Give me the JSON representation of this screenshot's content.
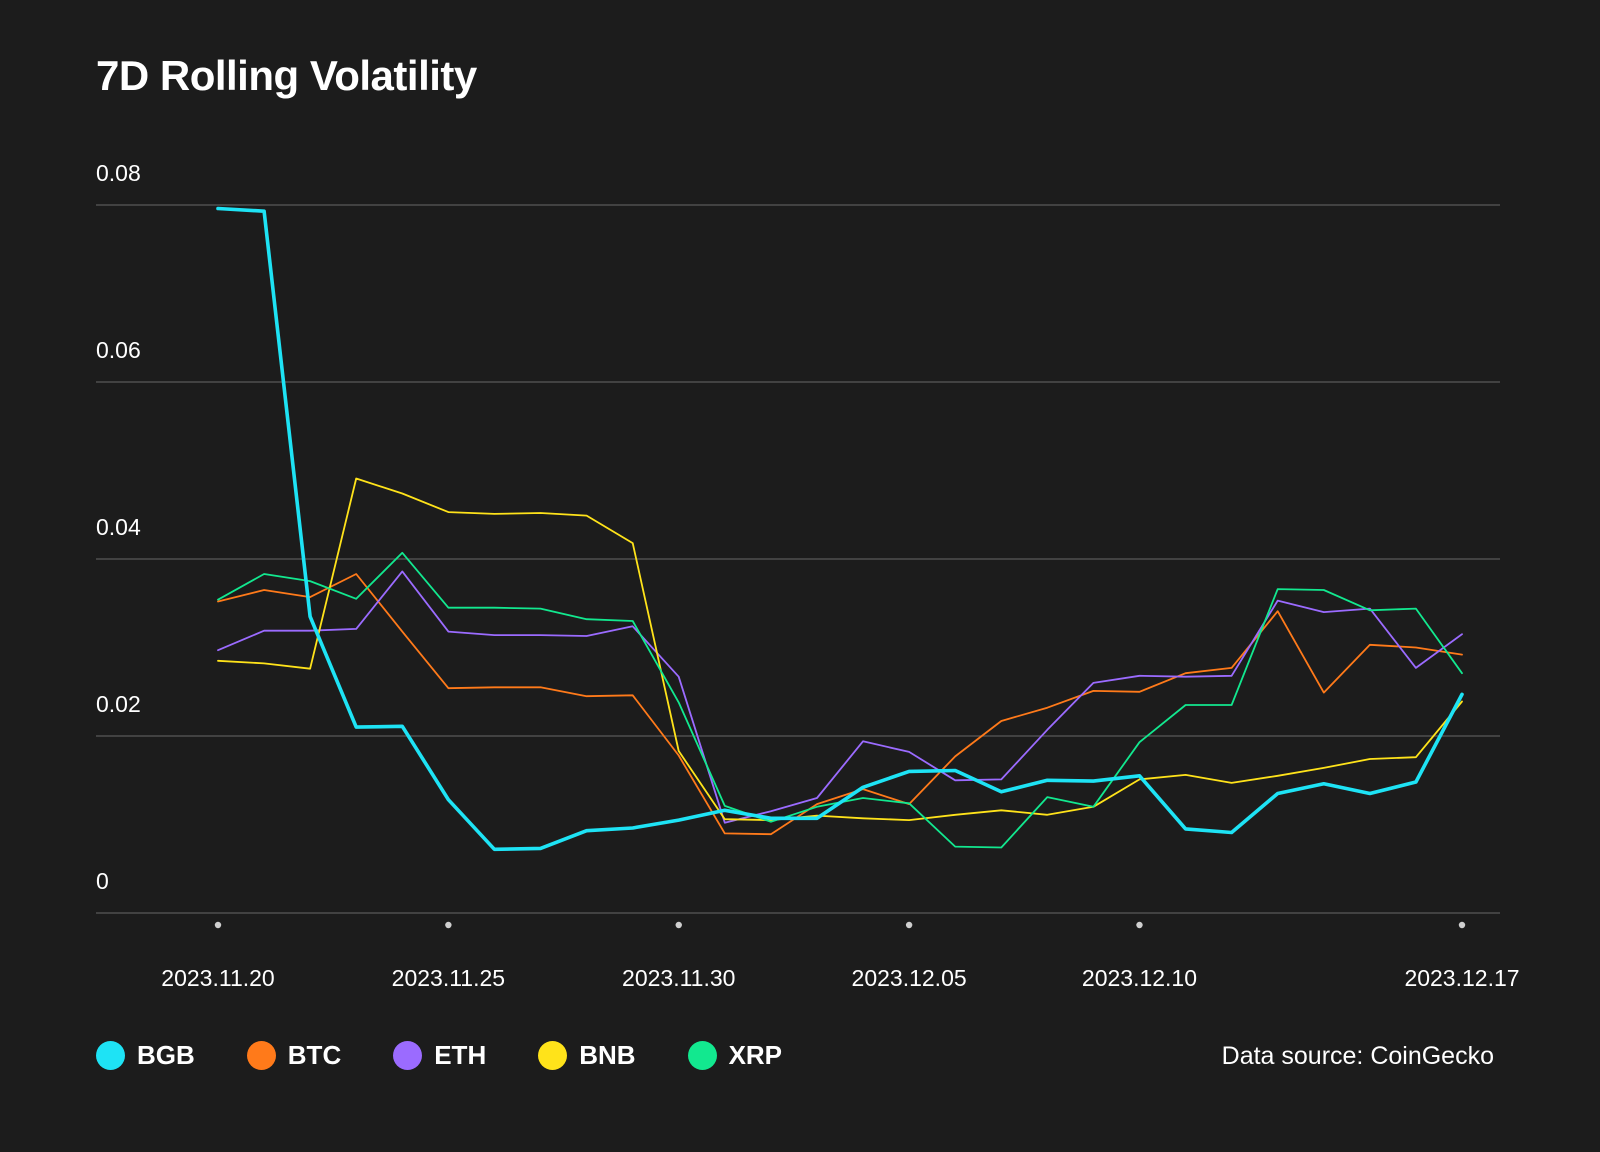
{
  "chart_data": {
    "type": "line",
    "title": "7D Rolling Volatility",
    "xlabel": "",
    "ylabel": "",
    "ylim": [
      0,
      0.08
    ],
    "y_ticks": [
      {
        "value": 0,
        "label": "0"
      },
      {
        "value": 0.02,
        "label": "0.02"
      },
      {
        "value": 0.04,
        "label": "0.04"
      },
      {
        "value": 0.06,
        "label": "0.06"
      },
      {
        "value": 0.08,
        "label": "0.08"
      }
    ],
    "x": [
      "2023.11.20",
      "2023.11.21",
      "2023.11.22",
      "2023.11.23",
      "2023.11.24",
      "2023.11.25",
      "2023.11.26",
      "2023.11.27",
      "2023.11.28",
      "2023.11.29",
      "2023.11.30",
      "2023.12.01",
      "2023.12.02",
      "2023.12.03",
      "2023.12.04",
      "2023.12.05",
      "2023.12.06",
      "2023.12.07",
      "2023.12.08",
      "2023.12.09",
      "2023.12.10",
      "2023.12.11",
      "2023.12.12",
      "2023.12.13",
      "2023.12.14",
      "2023.12.15",
      "2023.12.16",
      "2023.12.17"
    ],
    "x_ticks": [
      {
        "index": 0,
        "label": "2023.11.20"
      },
      {
        "index": 5,
        "label": "2023.11.25"
      },
      {
        "index": 10,
        "label": "2023.11.30"
      },
      {
        "index": 15,
        "label": "2023.12.05"
      },
      {
        "index": 20,
        "label": "2023.12.10"
      },
      {
        "index": 27,
        "label": "2023.12.17"
      }
    ],
    "grid": true,
    "legend_position": "bottom-left",
    "source": "Data source: CoinGecko",
    "series": [
      {
        "name": "BGB",
        "color": "#1ee3f5",
        "emphasis": true,
        "values": [
          0.0796,
          0.0793,
          0.0335,
          0.021,
          0.0211,
          0.0128,
          0.0072,
          0.0073,
          0.0093,
          0.0096,
          0.0105,
          0.0116,
          0.0107,
          0.0107,
          0.0142,
          0.016,
          0.0161,
          0.0137,
          0.015,
          0.0149,
          0.0155,
          0.0095,
          0.0091,
          0.0135,
          0.0146,
          0.0135,
          0.0148,
          0.0247
        ]
      },
      {
        "name": "BTC",
        "color": "#ff7a1a",
        "emphasis": false,
        "values": [
          0.0352,
          0.0365,
          0.0357,
          0.0383,
          0.0318,
          0.0254,
          0.0255,
          0.0255,
          0.0245,
          0.0246,
          0.0178,
          0.009,
          0.0089,
          0.0123,
          0.014,
          0.0123,
          0.0177,
          0.0217,
          0.0232,
          0.0251,
          0.025,
          0.0271,
          0.0277,
          0.0341,
          0.0249,
          0.0303,
          0.03,
          0.0292
        ]
      },
      {
        "name": "ETH",
        "color": "#9b6bff",
        "emphasis": false,
        "values": [
          0.0297,
          0.0319,
          0.0319,
          0.0321,
          0.0386,
          0.0318,
          0.0314,
          0.0314,
          0.0313,
          0.0324,
          0.0267,
          0.0102,
          0.0115,
          0.013,
          0.0194,
          0.0182,
          0.015,
          0.0151,
          0.0207,
          0.026,
          0.0268,
          0.0267,
          0.0268,
          0.0353,
          0.034,
          0.0344,
          0.0277,
          0.0315
        ]
      },
      {
        "name": "BNB",
        "color": "#ffe31a",
        "emphasis": false,
        "values": [
          0.0285,
          0.0282,
          0.0276,
          0.0491,
          0.0474,
          0.0453,
          0.0451,
          0.0452,
          0.0449,
          0.0418,
          0.0183,
          0.0106,
          0.0105,
          0.011,
          0.0107,
          0.0105,
          0.0111,
          0.0116,
          0.0111,
          0.012,
          0.0151,
          0.0156,
          0.0147,
          0.0155,
          0.0164,
          0.0174,
          0.0176,
          0.0239
        ]
      },
      {
        "name": "XRP",
        "color": "#12e88f",
        "emphasis": false,
        "values": [
          0.0354,
          0.0383,
          0.0375,
          0.0355,
          0.0407,
          0.0345,
          0.0345,
          0.0344,
          0.0332,
          0.033,
          0.0238,
          0.0121,
          0.0103,
          0.012,
          0.013,
          0.0124,
          0.0075,
          0.0074,
          0.0131,
          0.012,
          0.0193,
          0.0235,
          0.0235,
          0.0366,
          0.0365,
          0.0342,
          0.0344,
          0.0271
        ]
      }
    ]
  }
}
